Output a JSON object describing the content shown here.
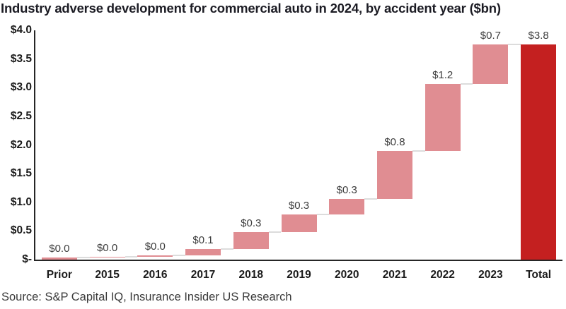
{
  "chart_data": {
    "type": "bar",
    "subtype": "waterfall",
    "title": "Industry adverse development for commercial auto in 2024, by accident year ($bn)",
    "source": "Source: S&P Capital IQ, Insurance Insider US Research",
    "categories": [
      "Prior",
      "2015",
      "2016",
      "2017",
      "2018",
      "2019",
      "2020",
      "2021",
      "2022",
      "2023",
      "Total"
    ],
    "values": [
      0.0,
      0.0,
      0.0,
      0.1,
      0.3,
      0.3,
      0.3,
      0.8,
      1.2,
      0.7,
      3.8
    ],
    "data_labels": [
      "$0.0",
      "$0.0",
      "$0.0",
      "$0.1",
      "$0.3",
      "$0.3",
      "$0.3",
      "$0.8",
      "$1.2",
      "$0.7",
      "$3.8"
    ],
    "segments": [
      {
        "category": "Prior",
        "start": 0.0,
        "end": 0.04,
        "is_total": false
      },
      {
        "category": "2015",
        "start": 0.04,
        "end": 0.05,
        "is_total": false
      },
      {
        "category": "2016",
        "start": 0.05,
        "end": 0.08,
        "is_total": false
      },
      {
        "category": "2017",
        "start": 0.08,
        "end": 0.18,
        "is_total": false
      },
      {
        "category": "2018",
        "start": 0.18,
        "end": 0.48,
        "is_total": false
      },
      {
        "category": "2019",
        "start": 0.48,
        "end": 0.79,
        "is_total": false
      },
      {
        "category": "2020",
        "start": 0.79,
        "end": 1.06,
        "is_total": false
      },
      {
        "category": "2021",
        "start": 1.06,
        "end": 1.89,
        "is_total": false
      },
      {
        "category": "2022",
        "start": 1.89,
        "end": 3.06,
        "is_total": false
      },
      {
        "category": "2023",
        "start": 3.06,
        "end": 3.76,
        "is_total": false
      },
      {
        "category": "Total",
        "start": 0.0,
        "end": 3.76,
        "is_total": true
      }
    ],
    "ylim": [
      0,
      4.0
    ],
    "yticks": [
      {
        "value": 0.0,
        "label": "$-"
      },
      {
        "value": 0.5,
        "label": "$0.5"
      },
      {
        "value": 1.0,
        "label": "$1.0"
      },
      {
        "value": 1.5,
        "label": "$1.5"
      },
      {
        "value": 2.0,
        "label": "$2.0"
      },
      {
        "value": 2.5,
        "label": "$2.5"
      },
      {
        "value": 3.0,
        "label": "$3.0"
      },
      {
        "value": 3.5,
        "label": "$3.5"
      },
      {
        "value": 4.0,
        "label": "$4.0"
      }
    ],
    "grid": false,
    "legend": false,
    "colors": {
      "bar": "#e08d92",
      "total_bar": "#c42020",
      "connector": "#dcdcdc",
      "axis": "#262626",
      "data_label": "#3d3d3d",
      "tick_label": "#1a1a1a",
      "title": "#1c1c24"
    }
  }
}
